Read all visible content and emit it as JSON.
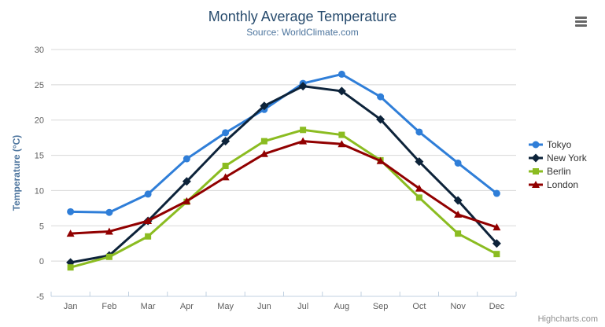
{
  "chart": {
    "title": "Monthly Average Temperature",
    "subtitle": "Source: WorldClimate.com",
    "credits": "Highcharts.com"
  },
  "chart_data": {
    "type": "line",
    "title": "Monthly Average Temperature",
    "subtitle": "Source: WorldClimate.com",
    "categories": [
      "Jan",
      "Feb",
      "Mar",
      "Apr",
      "May",
      "Jun",
      "Jul",
      "Aug",
      "Sep",
      "Oct",
      "Nov",
      "Dec"
    ],
    "series": [
      {
        "name": "Tokyo",
        "color": "#2f7ed8",
        "marker": "circle",
        "values": [
          7.0,
          6.9,
          9.5,
          14.5,
          18.2,
          21.5,
          25.2,
          26.5,
          23.3,
          18.3,
          13.9,
          9.6
        ]
      },
      {
        "name": "New York",
        "color": "#0d233a",
        "marker": "diamond",
        "values": [
          -0.2,
          0.8,
          5.7,
          11.3,
          17.0,
          22.0,
          24.8,
          24.1,
          20.1,
          14.1,
          8.6,
          2.5
        ]
      },
      {
        "name": "Berlin",
        "color": "#8bbc21",
        "marker": "square",
        "values": [
          -0.9,
          0.6,
          3.5,
          8.4,
          13.5,
          17.0,
          18.6,
          17.9,
          14.3,
          9.0,
          3.9,
          1.0
        ]
      },
      {
        "name": "London",
        "color": "#910000",
        "marker": "triangle",
        "values": [
          3.9,
          4.2,
          5.7,
          8.5,
          11.9,
          15.2,
          17.0,
          16.6,
          14.2,
          10.3,
          6.6,
          4.8
        ]
      }
    ],
    "xlabel": "",
    "ylabel": "Temperature (°C)",
    "ylim": [
      -5,
      30
    ],
    "yticks": [
      -5,
      0,
      5,
      10,
      15,
      20,
      25,
      30
    ],
    "grid": true,
    "legend_position": "right",
    "colors": {
      "grid_line": "#d8d8d8",
      "axis_line": "#c0d0e0",
      "tick_label": "#606060",
      "title": "#274b6d",
      "subtitle": "#4d759e",
      "axis_title": "#4d759e",
      "legend_text": "#333333",
      "credits": "#909090"
    }
  }
}
